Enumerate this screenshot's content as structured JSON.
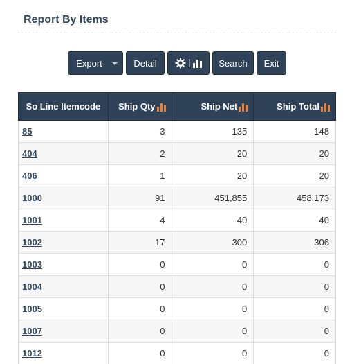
{
  "page": {
    "title": "Report By Items"
  },
  "toolbar": {
    "export_label": "Export",
    "detail_label": "Detail",
    "search_label": "Search",
    "exit_label": "Exit"
  },
  "table": {
    "headers": {
      "code": "So Line Itemcode",
      "qty": "Ship Qty",
      "net": "Ship Net",
      "total": "Ship Total"
    },
    "rows": [
      {
        "code": "85",
        "qty": "3",
        "net": "135",
        "total": "148"
      },
      {
        "code": "404",
        "qty": "2",
        "net": "20",
        "total": "20"
      },
      {
        "code": "406",
        "qty": "1",
        "net": "20",
        "total": "20"
      },
      {
        "code": "1000",
        "qty": "91",
        "net": "451,855",
        "total": "458,173"
      },
      {
        "code": "1001",
        "qty": "4",
        "net": "40",
        "total": "40"
      },
      {
        "code": "1002",
        "qty": "17",
        "net": "300",
        "total": "306"
      },
      {
        "code": "1003",
        "qty": "0",
        "net": "0",
        "total": "0"
      },
      {
        "code": "1004",
        "qty": "0",
        "net": "0",
        "total": "0"
      },
      {
        "code": "1005",
        "qty": "0",
        "net": "0",
        "total": "0"
      },
      {
        "code": "1007",
        "qty": "0",
        "net": "0",
        "total": "0"
      },
      {
        "code": "1012",
        "qty": "0",
        "net": "0",
        "total": "0"
      }
    ]
  },
  "icons": {
    "settings": "gear-icon",
    "chart": "bar-chart-icon",
    "sort": "bar-chart-sort-icon"
  },
  "colors": {
    "header_bg": "#2f4257",
    "sort_icon": "#e8803a",
    "link": "#34495e"
  }
}
